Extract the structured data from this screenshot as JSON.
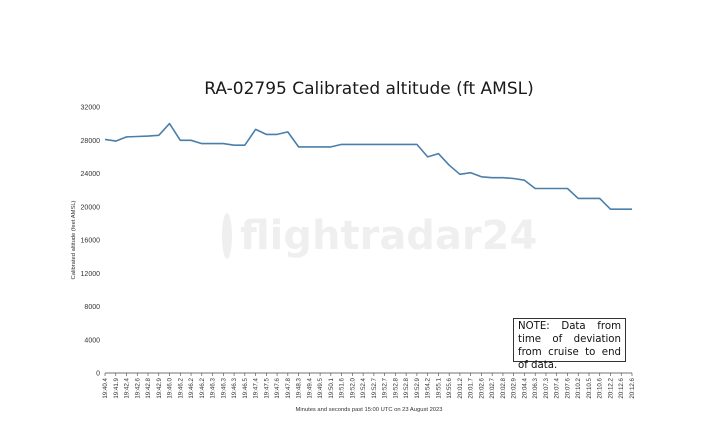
{
  "watermark": "flightradar24",
  "note": "NOTE: Data from time of deviation from cruise to end of data.",
  "chart_data": {
    "type": "line",
    "title": "RA-02795 Calibrated altitude (ft AMSL)",
    "xlabel": "Minutes and seconds past 15:00 UTC on 23 August 2023",
    "ylabel": "Calibrated altitude (feet AMSL)",
    "ylim": [
      0,
      32000
    ],
    "yticks": [
      0,
      4000,
      8000,
      12000,
      16000,
      20000,
      24000,
      28000,
      32000
    ],
    "grid": false,
    "legend": "none",
    "line_color": "#4a7fab",
    "categories": [
      "19:40.4",
      "19:41.9",
      "19:42.4",
      "19:42.6",
      "19:42.8",
      "19:42.9",
      "19:46.0",
      "19:46.2",
      "19:46.2",
      "19:46.2",
      "19:46.3",
      "19:46.3",
      "19:46.3",
      "19:46.5",
      "19:47.4",
      "19:47.5",
      "19:47.6",
      "19:47.8",
      "19:48.3",
      "19:49.4",
      "19:49.5",
      "19:50.1",
      "19:51.6",
      "19:52.0",
      "19:52.4",
      "19:52.7",
      "19:52.7",
      "19:52.8",
      "19:52.8",
      "19:52.9",
      "19:54.2",
      "19:55.1",
      "19:55.6",
      "20:01.2",
      "20:01.7",
      "20:02.6",
      "20:02.7",
      "20:02.8",
      "20:02.9",
      "20:04.4",
      "20:06.3",
      "20:07.3",
      "20:07.4",
      "20:07.6",
      "20:10.2",
      "20:10.5",
      "20:10.6",
      "20:12.2",
      "20:12.6",
      "20:12.6"
    ],
    "series": [
      {
        "values": [
          28100,
          27900,
          28400,
          28450,
          28500,
          28600,
          30000,
          28000,
          28000,
          27600,
          27600,
          27600,
          27400,
          27400,
          29300,
          28700,
          28700,
          29000,
          27200,
          27200,
          27200,
          27200,
          27500,
          27500,
          27500,
          27500,
          27500,
          27500,
          27500,
          27500,
          26000,
          26400,
          25000,
          23900,
          24100,
          23600,
          23500,
          23500,
          23400,
          23200,
          22200,
          22200,
          22200,
          22200,
          21000,
          21000,
          21000,
          19700,
          19700,
          19700
        ]
      }
    ]
  }
}
